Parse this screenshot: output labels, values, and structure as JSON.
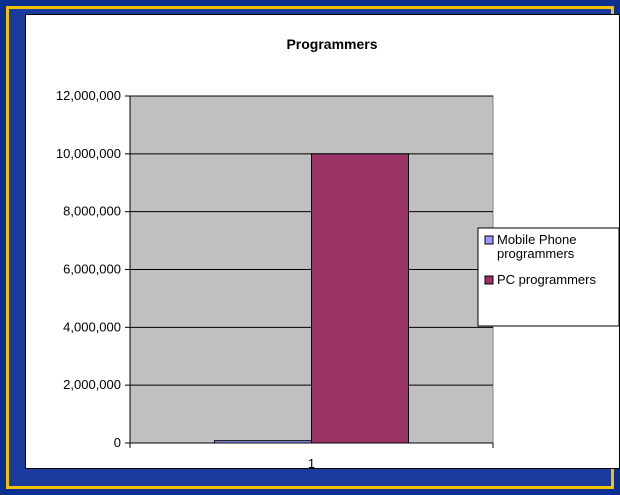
{
  "chart_data": {
    "type": "bar",
    "title": "Programmers",
    "categories": [
      "1"
    ],
    "series": [
      {
        "name": "Mobile Phone programmers",
        "values": [
          80000
        ],
        "color": "#9999ff"
      },
      {
        "name": "PC programmers",
        "values": [
          10000000
        ],
        "color": "#993366"
      }
    ],
    "ylim": [
      0,
      12000000
    ],
    "yticks": [
      "0",
      "2,000,000",
      "4,000,000",
      "6,000,000",
      "8,000,000",
      "10,000,000",
      "12,000,000"
    ],
    "ytick_values": [
      0,
      2000000,
      4000000,
      6000000,
      8000000,
      10000000,
      12000000
    ],
    "plot_background": "#c0c0c0",
    "grid": true,
    "legend_position": "right"
  },
  "legend": {
    "items": [
      {
        "lines": [
          "Mobile Phone",
          "programmers"
        ],
        "color": "#9999ff"
      },
      {
        "lines": [
          "PC programmers"
        ],
        "color": "#993366"
      }
    ]
  }
}
